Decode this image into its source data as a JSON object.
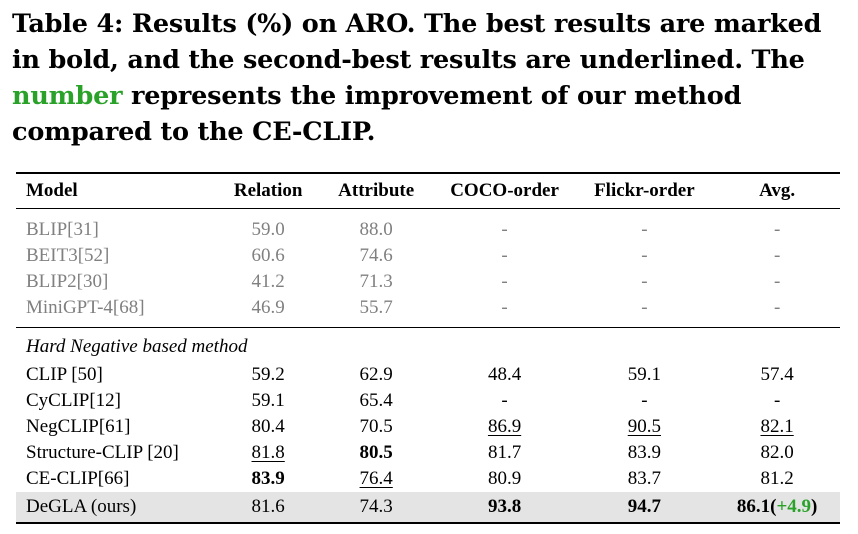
{
  "caption": {
    "part1": "Table 4: Results (%) on ARO. The best results are marked in bold, and the second-best results are underlined. The ",
    "highlight": "number",
    "part2": " represents the improvement of our method compared to the CE-CLIP."
  },
  "table": {
    "headers": [
      "Model",
      "Relation",
      "Attribute",
      "COCO-order",
      "Flickr-order",
      "Avg."
    ],
    "gray_rows": [
      {
        "model": "BLIP[31]",
        "relation": "59.0",
        "attribute": "88.0",
        "coco": "-",
        "flickr": "-",
        "avg": "-"
      },
      {
        "model": "BEIT3[52]",
        "relation": "60.6",
        "attribute": "74.6",
        "coco": "-",
        "flickr": "-",
        "avg": "-"
      },
      {
        "model": "BLIP2[30]",
        "relation": "41.2",
        "attribute": "71.3",
        "coco": "-",
        "flickr": "-",
        "avg": "-"
      },
      {
        "model": "MiniGPT-4[68]",
        "relation": "46.9",
        "attribute": "55.7",
        "coco": "-",
        "flickr": "-",
        "avg": "-"
      }
    ],
    "section_label": "Hard Negative based method",
    "rows": [
      {
        "model": "CLIP [50]",
        "relation": "59.2",
        "attribute": "62.9",
        "coco": "48.4",
        "flickr": "59.1",
        "avg": "57.4"
      },
      {
        "model": "CyCLIP[12]",
        "relation": "59.1",
        "attribute": "65.4",
        "coco": "-",
        "flickr": "-",
        "avg": "-"
      },
      {
        "model": "NegCLIP[61]",
        "relation": "80.4",
        "attribute": "70.5",
        "coco": "86.9",
        "flickr": "90.5",
        "avg": "82.1"
      },
      {
        "model": "Structure-CLIP [20]",
        "relation": "81.8",
        "attribute": "80.5",
        "coco": "81.7",
        "flickr": "83.9",
        "avg": "82.0"
      },
      {
        "model": "CE-CLIP[66]",
        "relation": "83.9",
        "attribute": "76.4",
        "coco": "80.9",
        "flickr": "83.7",
        "avg": "81.2"
      }
    ],
    "ours": {
      "model": "DeGLA (ours)",
      "relation": "81.6",
      "attribute": "74.3",
      "coco": "93.8",
      "flickr": "94.7",
      "avg": "86.1",
      "avg_gain_open": "(",
      "avg_gain": "+4.9",
      "avg_gain_close": ")"
    }
  }
}
